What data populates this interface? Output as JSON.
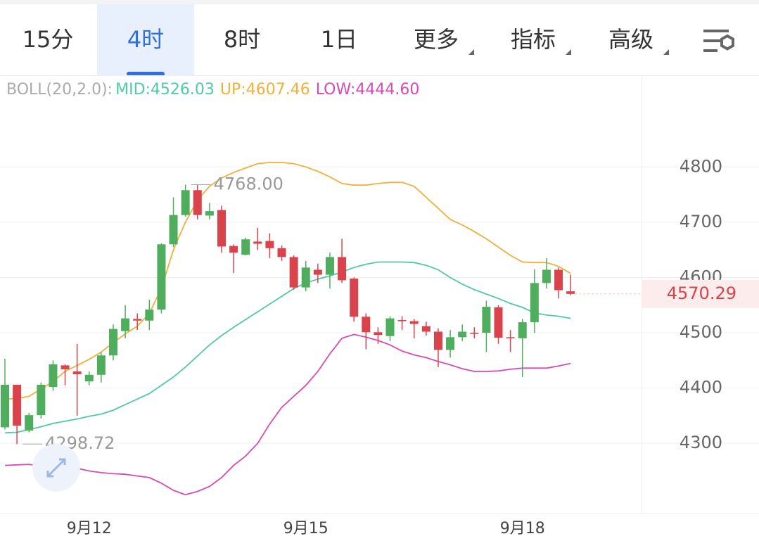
{
  "tabs": [
    "15分",
    "4时",
    "8时",
    "1日",
    "更多",
    "指标",
    "高级"
  ],
  "selected_tab": 1,
  "chart_data": {
    "type": "candlestick",
    "indicator": "BOLL(20,2.0):",
    "legend_separator": ":",
    "categories": [
      null,
      null,
      null,
      null,
      null,
      null,
      null,
      "9月12",
      null,
      null,
      null,
      null,
      null,
      null,
      null,
      null,
      null,
      null,
      null,
      null,
      null,
      null,
      null,
      null,
      null,
      "9月15",
      null,
      null,
      null,
      null,
      null,
      null,
      null,
      null,
      null,
      null,
      null,
      null,
      null,
      null,
      null,
      null,
      null,
      "9月18",
      null,
      null,
      null,
      null
    ],
    "open": [
      4329,
      4406,
      4323,
      4351,
      4402,
      4441,
      4430,
      4412,
      4424,
      4459,
      4503,
      4525,
      4522,
      4542,
      4660,
      4713,
      4758,
      4712,
      4722,
      4657,
      4641,
      4665,
      4666,
      4653,
      4637,
      4582,
      4614,
      4605,
      4637,
      4598,
      4529,
      4501,
      4494,
      4523,
      4521,
      4512,
      4502,
      4469,
      4492,
      4500,
      4500,
      4546,
      4492,
      4490,
      4519,
      4590,
      4614,
      4575
    ],
    "high": [
      4453,
      4406,
      4355,
      4410,
      4450,
      4443,
      4480,
      4430,
      4465,
      4515,
      4550,
      4535,
      4560,
      4662,
      4745,
      4768,
      4768,
      4735,
      4730,
      4660,
      4672,
      4690,
      4680,
      4658,
      4640,
      4630,
      4625,
      4645,
      4670,
      4600,
      4535,
      4510,
      4530,
      4530,
      4525,
      4520,
      4508,
      4505,
      4515,
      4510,
      4558,
      4550,
      4505,
      4525,
      4615,
      4635,
      4618,
      4605
    ],
    "low": [
      4325,
      4298.72,
      4320,
      4345,
      4395,
      4405,
      4350,
      4405,
      4410,
      4450,
      4490,
      4505,
      4505,
      4535,
      4655,
      4710,
      4705,
      4705,
      4645,
      4608,
      4640,
      4650,
      4635,
      4630,
      4578,
      4575,
      4590,
      4580,
      4590,
      4520,
      4470,
      4480,
      4485,
      4505,
      4490,
      4495,
      4438,
      4455,
      4485,
      4490,
      4465,
      4480,
      4465,
      4420,
      4500,
      4580,
      4562,
      4568
    ],
    "close": [
      4406,
      4332,
      4351,
      4406,
      4443,
      4434,
      4425,
      4424,
      4459,
      4507,
      4526,
      4522,
      4542,
      4660,
      4713,
      4758,
      4713,
      4720,
      4656,
      4645,
      4669,
      4661,
      4653,
      4637,
      4582,
      4618,
      4605,
      4637,
      4595,
      4529,
      4501,
      4496,
      4526,
      4521,
      4516,
      4502,
      4469,
      4492,
      4502,
      4498,
      4547,
      4491,
      4490,
      4519,
      4590,
      4614,
      4577,
      4570.29
    ],
    "up_color": "#4fae5e",
    "down_color": "#d9434c",
    "series": [
      {
        "name": "MID",
        "color": "#4fc9a6",
        "label": "4526.03",
        "values": [
          4319,
          4320,
          4325,
          4330,
          4336,
          4340,
          4344,
          4349,
          4353,
          4360,
          4370,
          4380,
          4390,
          4405,
          4420,
          4438,
          4458,
          4478,
          4495,
          4510,
          4524,
          4538,
          4552,
          4566,
          4580,
          4590,
          4597,
          4603,
          4610,
          4618,
          4624,
          4628,
          4628,
          4628,
          4627,
          4622,
          4614,
          4600,
          4588,
          4578,
          4570,
          4562,
          4553,
          4546,
          4536,
          4532,
          4530,
          4526.03
        ]
      },
      {
        "name": "UP",
        "color": "#f0b03a",
        "label": "4607.46",
        "values": [
          4380,
          4381,
          4385,
          4398,
          4412,
          4430,
          4441,
          4452,
          4465,
          4482,
          4498,
          4512,
          4535,
          4580,
          4650,
          4700,
          4740,
          4765,
          4780,
          4790,
          4798,
          4806,
          4808,
          4808,
          4806,
          4800,
          4792,
          4782,
          4770,
          4767,
          4767,
          4770,
          4772,
          4772,
          4765,
          4745,
          4725,
          4705,
          4695,
          4683,
          4670,
          4655,
          4640,
          4628,
          4627,
          4627,
          4620,
          4607.46
        ]
      },
      {
        "name": "LOW",
        "color": "#d64bb4",
        "label": "4444.60",
        "values": [
          4260,
          4261,
          4262,
          4259,
          4256,
          4257,
          4255,
          4250,
          4247,
          4245,
          4244,
          4241,
          4238,
          4228,
          4215,
          4207,
          4213,
          4222,
          4238,
          4260,
          4277,
          4300,
          4335,
          4365,
          4385,
          4405,
          4430,
          4462,
          4490,
          4497,
          4492,
          4486,
          4478,
          4467,
          4460,
          4455,
          4448,
          4442,
          4435,
          4430,
          4430,
          4431,
          4434,
          4436,
          4436,
          4436,
          4440,
          4444.6
        ]
      }
    ],
    "annotations": [
      {
        "index": 15,
        "value": 4768,
        "label": "4768.00"
      },
      {
        "index": 1,
        "value": 4298.72,
        "label": "4298.72"
      }
    ],
    "last_price": 4570.29,
    "ylim": [
      4173,
      4962
    ],
    "yticks": [
      4300,
      4400,
      4500,
      4600,
      4700,
      4800
    ],
    "grid": true
  }
}
